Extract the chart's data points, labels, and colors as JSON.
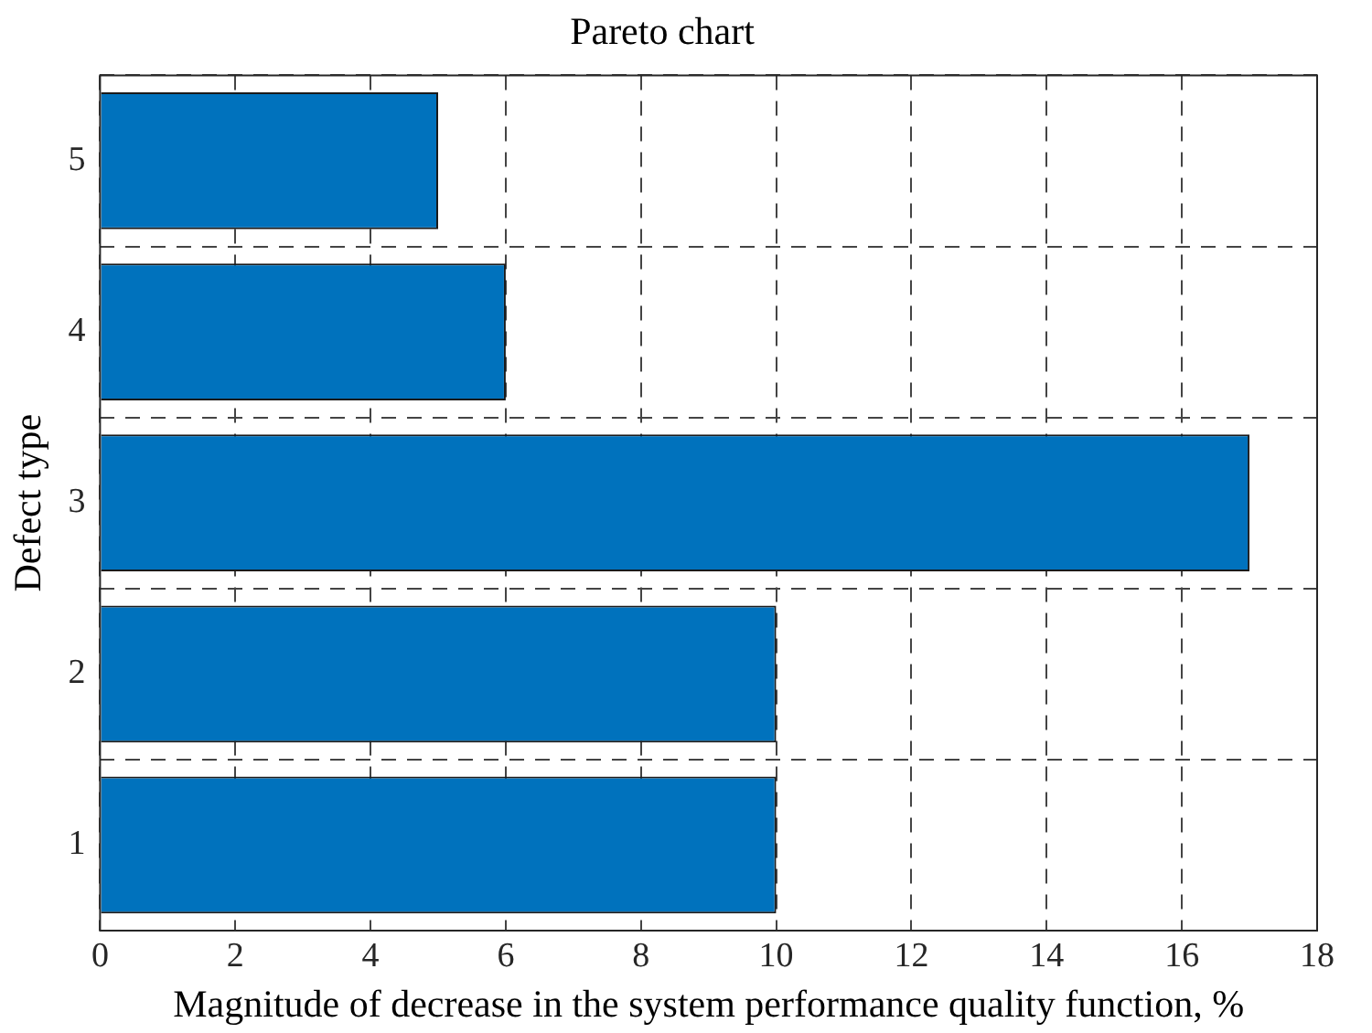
{
  "chart_data": {
    "type": "bar",
    "orientation": "horizontal",
    "title": "Pareto chart",
    "xlabel": "Magnitude of decrease in the system performance quality function, %",
    "ylabel": "Defect type",
    "categories": [
      "5",
      "4",
      "3",
      "2",
      "1"
    ],
    "values": [
      5,
      6,
      17,
      10,
      10
    ],
    "color": "#0072bd",
    "xlim": [
      0,
      18
    ],
    "xticks": [
      0,
      2,
      4,
      6,
      8,
      10,
      12,
      14,
      16,
      18
    ],
    "grid": true
  }
}
